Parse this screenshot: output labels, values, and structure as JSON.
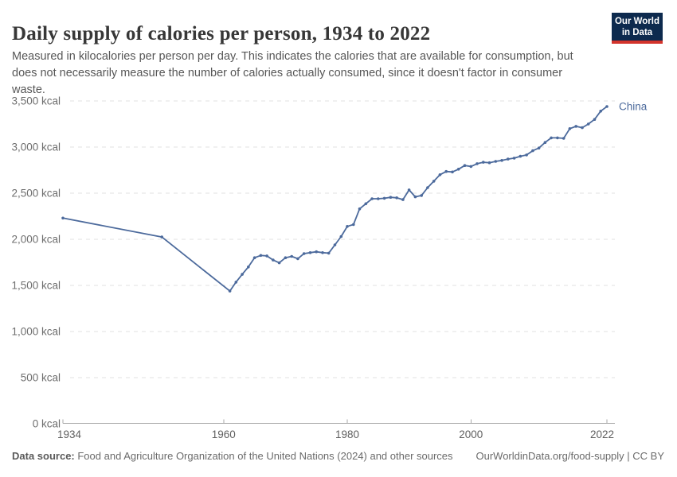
{
  "header": {
    "title": "Daily supply of calories per person, 1934 to 2022",
    "subtitle_lines": [
      "Measured in kilocalories per person per day. This indicates the calories that are available for consumption, but",
      "does not necessarily measure the number of calories actually consumed, since it doesn't factor in consumer",
      "waste."
    ],
    "logo": {
      "line1": "Our World",
      "line2": "in Data",
      "bg_color": "#0d2a4e",
      "stripe_color": "#d3342c"
    }
  },
  "chart_data": {
    "type": "line",
    "title": "Daily supply of calories per person, 1934 to 2022",
    "unit": "kcal",
    "xlabel": "",
    "ylabel": "",
    "xlim": [
      1934,
      2022
    ],
    "ylim": [
      0,
      3500
    ],
    "grid": "horizontal-dashed",
    "legend_position": "end-of-line-label",
    "x_ticks": [
      {
        "year": 1934,
        "label": "1934"
      },
      {
        "year": 1960,
        "label": "1960"
      },
      {
        "year": 1980,
        "label": "1980"
      },
      {
        "year": 2000,
        "label": "2000"
      },
      {
        "year": 2022,
        "label": "2022"
      }
    ],
    "y_ticks": [
      {
        "value": 0,
        "label": "0 kcal"
      },
      {
        "value": 500,
        "label": "500 kcal"
      },
      {
        "value": 1000,
        "label": "1,000 kcal"
      },
      {
        "value": 1500,
        "label": "1,500 kcal"
      },
      {
        "value": 2000,
        "label": "2,000 kcal"
      },
      {
        "value": 2500,
        "label": "2,500 kcal"
      },
      {
        "value": 3000,
        "label": "3,000 kcal"
      },
      {
        "value": 3500,
        "label": "3,500 kcal"
      }
    ],
    "series": [
      {
        "name": "China",
        "color": "#4c6a9c",
        "points": [
          [
            1934,
            2230
          ],
          [
            1950,
            2025
          ],
          [
            1961,
            1439
          ],
          [
            1962,
            1535
          ],
          [
            1963,
            1620
          ],
          [
            1964,
            1700
          ],
          [
            1965,
            1800
          ],
          [
            1966,
            1825
          ],
          [
            1967,
            1820
          ],
          [
            1968,
            1775
          ],
          [
            1969,
            1745
          ],
          [
            1970,
            1800
          ],
          [
            1971,
            1815
          ],
          [
            1972,
            1790
          ],
          [
            1973,
            1845
          ],
          [
            1974,
            1855
          ],
          [
            1975,
            1865
          ],
          [
            1976,
            1855
          ],
          [
            1977,
            1850
          ],
          [
            1978,
            1940
          ],
          [
            1979,
            2030
          ],
          [
            1980,
            2140
          ],
          [
            1981,
            2160
          ],
          [
            1982,
            2330
          ],
          [
            1983,
            2385
          ],
          [
            1984,
            2440
          ],
          [
            1985,
            2440
          ],
          [
            1986,
            2445
          ],
          [
            1987,
            2455
          ],
          [
            1988,
            2450
          ],
          [
            1989,
            2430
          ],
          [
            1990,
            2535
          ],
          [
            1991,
            2460
          ],
          [
            1992,
            2475
          ],
          [
            1993,
            2560
          ],
          [
            1994,
            2630
          ],
          [
            1995,
            2700
          ],
          [
            1996,
            2735
          ],
          [
            1997,
            2730
          ],
          [
            1998,
            2760
          ],
          [
            1999,
            2800
          ],
          [
            2000,
            2790
          ],
          [
            2001,
            2820
          ],
          [
            2002,
            2835
          ],
          [
            2003,
            2830
          ],
          [
            2004,
            2845
          ],
          [
            2005,
            2855
          ],
          [
            2006,
            2870
          ],
          [
            2007,
            2880
          ],
          [
            2008,
            2900
          ],
          [
            2009,
            2915
          ],
          [
            2010,
            2960
          ],
          [
            2011,
            2990
          ],
          [
            2012,
            3050
          ],
          [
            2013,
            3100
          ],
          [
            2014,
            3100
          ],
          [
            2015,
            3095
          ],
          [
            2016,
            3200
          ],
          [
            2017,
            3225
          ],
          [
            2018,
            3210
          ],
          [
            2019,
            3250
          ],
          [
            2020,
            3300
          ],
          [
            2021,
            3390
          ],
          [
            2022,
            3440
          ]
        ]
      }
    ]
  },
  "footer": {
    "source_label": "Data source:",
    "source_text": " Food and Agriculture Organization of the United Nations (2024) and other sources",
    "right_text": "OurWorldinData.org/food-supply | CC BY"
  }
}
